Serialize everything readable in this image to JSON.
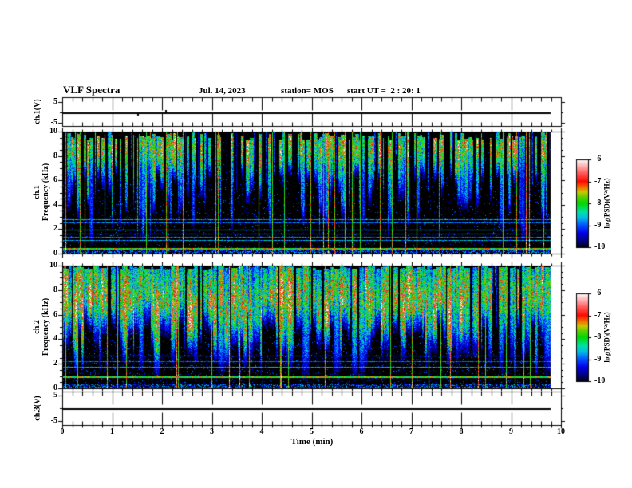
{
  "header": {
    "title": "VLF Spectra",
    "date": "Jul. 14, 2023",
    "station": "station= MOS",
    "start_ut": "start UT =  2 : 20: 1"
  },
  "axis": {
    "x_label": "Time (min)",
    "x_ticks": [
      "0",
      "1",
      "2",
      "3",
      "4",
      "5",
      "6",
      "7",
      "8",
      "9",
      "10"
    ],
    "freq_ticks": [
      "10",
      "8",
      "6",
      "4",
      "2",
      "0"
    ],
    "volt_ticks": [
      "5",
      "-5"
    ],
    "ch1_volt_label": "ch.1(V)",
    "ch3_volt_label": "ch.3(V)",
    "sp1_label_line1": "ch.1",
    "sp1_label_line2": "Frequency (kHz)",
    "sp2_label_line1": "ch.2",
    "sp2_label_line2": "Frequency (kHz)"
  },
  "colorbar": {
    "label": "log(PSD)(V²/Hz)",
    "ticks": [
      "-6",
      "-7",
      "-8",
      "-9",
      "-10"
    ],
    "stops": [
      [
        0.0,
        "#000014"
      ],
      [
        0.07,
        "#000080"
      ],
      [
        0.16,
        "#0000e8"
      ],
      [
        0.25,
        "#0050ff"
      ],
      [
        0.33,
        "#00b8e8"
      ],
      [
        0.4,
        "#00e0a8"
      ],
      [
        0.5,
        "#00d800"
      ],
      [
        0.57,
        "#58d000"
      ],
      [
        0.63,
        "#c8c800"
      ],
      [
        0.68,
        "#f07000"
      ],
      [
        0.75,
        "#ff0a00"
      ],
      [
        0.85,
        "#ff6060"
      ],
      [
        0.93,
        "#ffb8b8"
      ],
      [
        1.0,
        "#ffffff"
      ]
    ]
  },
  "chart_data": {
    "type": "heatmap",
    "title": "VLF Spectra",
    "date": "Jul. 14, 2023",
    "station": "MOS",
    "start_ut": "2:20:1",
    "xlabel": "Time (min)",
    "x_range": [
      0,
      10
    ],
    "x_data_extent": [
      0,
      9.8
    ],
    "panels": [
      {
        "name": "ch.1 voltage",
        "type": "line",
        "ylabel": "ch.1(V)",
        "y_ticks": [
          5,
          -5
        ],
        "series": "constant 0 V line from t=0 to t=9.8 min with tiny glitches near t=1.5 and t=2.1 min"
      },
      {
        "name": "ch.1 spectrogram",
        "type": "heatmap",
        "ylabel": "ch.1 Frequency (kHz)",
        "y_range": [
          0,
          10
        ],
        "z_label": "log(PSD)(V²/Hz)",
        "z_range": [
          -10,
          -6
        ],
        "description": "dense narrow vertical sferic bursts 4-10 kHz, strongest 8-9.5 kHz with green/yellow/red cores and blue fringes; ~30 full-height narrow green lines; horizontal carrier lines at low frequency; black background",
        "horizontal_lines_khz": [
          0.42,
          1.05,
          1.35,
          1.6,
          1.95,
          2.5,
          2.8
        ],
        "render": {
          "seed": 41,
          "burst_prob": 0.52,
          "max_width": 5,
          "peak": [
            8.0,
            9.5
          ],
          "sigma": 1.35,
          "amp": [
            0.55,
            1.0
          ],
          "top_min": 9.3,
          "taper": 1.6,
          "fracs": [
            0.12,
            0.35
          ],
          "bot_deep": [
            0.1,
            1.0
          ],
          "bot_mid": [
            1.5,
            3.8
          ],
          "bot_hi": [
            3.8,
            6.3
          ],
          "full_lines": 30,
          "speckle": 0.035,
          "h_lines": [
            {
              "f": 0.42,
              "v": 0.62,
              "w": 2
            },
            {
              "f": 1.05,
              "v": 0.35,
              "w": 1
            },
            {
              "f": 1.35,
              "v": 0.3,
              "w": 1
            },
            {
              "f": 1.6,
              "v": 0.28,
              "w": 1
            },
            {
              "f": 1.95,
              "v": 0.4,
              "w": 1
            },
            {
              "f": 2.5,
              "v": 0.3,
              "w": 1
            },
            {
              "f": 2.8,
              "v": 0.33,
              "w": 1
            }
          ]
        }
      },
      {
        "name": "ch.2 spectrogram",
        "type": "heatmap",
        "ylabel": "ch.2 Frequency (kHz)",
        "y_range": [
          0,
          10
        ],
        "z_label": "log(PSD)(V²/Hz)",
        "z_range": [
          -10,
          -6
        ],
        "description": "denser broadband bursts 2.5-10 kHz with red/orange cores at 6-8.5 kHz, green bodies, ragged blue tails; ~26 full-height narrow lines; bright cyan carrier near 1 kHz; black background",
        "horizontal_lines_khz": [
          0.97,
          1.7,
          2.2,
          2.6
        ],
        "render": {
          "seed": 97,
          "burst_prob": 0.8,
          "max_width": 9,
          "peak": [
            5.8,
            8.6
          ],
          "sigma": 2.0,
          "amp": [
            0.6,
            1.02
          ],
          "top_min": 9.7,
          "taper": 2.5,
          "fracs": [
            0.15,
            0.45
          ],
          "bot_deep": [
            0.1,
            1.0
          ],
          "bot_mid": [
            1.2,
            3.0
          ],
          "bot_hi": [
            3.0,
            5.0
          ],
          "full_lines": 26,
          "speckle": 0.05,
          "h_lines": [
            {
              "f": 0.97,
              "v": 0.58,
              "w": 2
            },
            {
              "f": 1.7,
              "v": 0.35,
              "w": 1
            },
            {
              "f": 2.2,
              "v": 0.28,
              "w": 1
            },
            {
              "f": 2.6,
              "v": 0.24,
              "w": 1
            }
          ]
        }
      },
      {
        "name": "ch.3 voltage",
        "type": "line",
        "ylabel": "ch.3(V)",
        "y_ticks": [
          5,
          -5
        ],
        "series": "constant 0 V line from t=0 to t=9.8 min"
      }
    ]
  }
}
